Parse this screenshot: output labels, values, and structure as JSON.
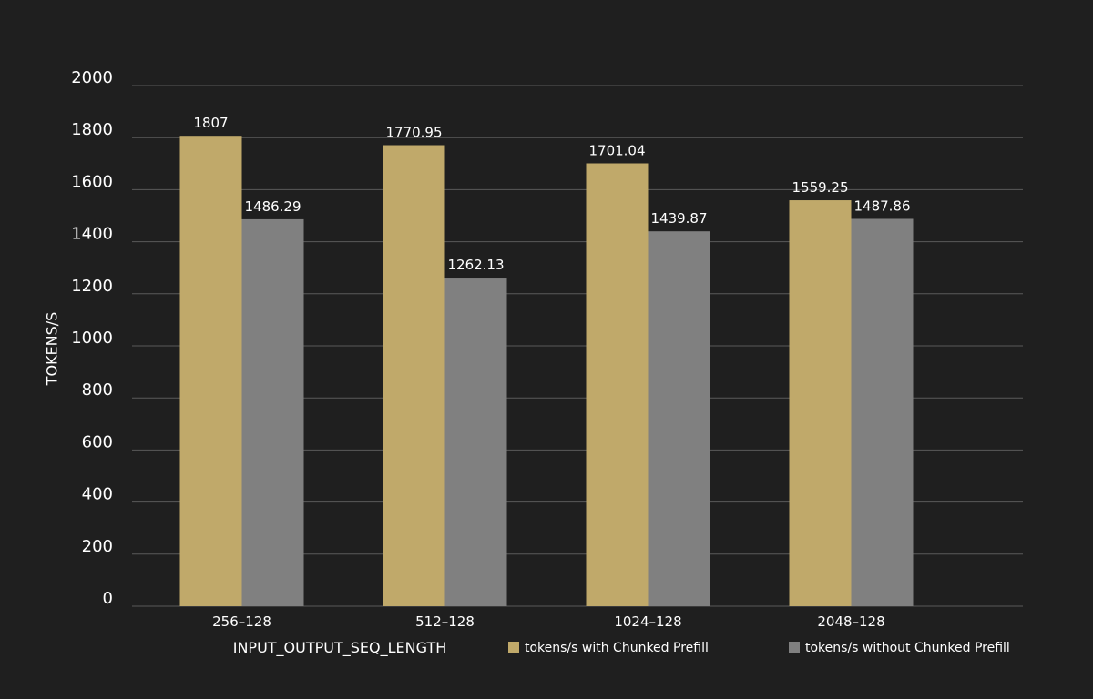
{
  "chart_data": {
    "type": "bar",
    "title": "",
    "xlabel": "INPUT_OUTPUT_SEQ_LENGTH",
    "ylabel": "TOKENS/S",
    "categories": [
      "256–128",
      "512–128",
      "1024–128",
      "2048–128"
    ],
    "series": [
      {
        "name": "tokens/s with Chunked Prefill",
        "color": "#c0a96a",
        "values": [
          1807,
          1770.95,
          1701.04,
          1559.25
        ],
        "labels": [
          "1807",
          "1770.95",
          "1701.04",
          "1559.25"
        ]
      },
      {
        "name": "tokens/s without Chunked Prefill",
        "color": "#808080",
        "values": [
          1486.29,
          1262.13,
          1439.87,
          1487.86
        ],
        "labels": [
          "1486.29",
          "1262.13",
          "1439.87",
          "1487.86"
        ]
      }
    ],
    "ylim": [
      0,
      2000
    ],
    "yticks": [
      0,
      200,
      400,
      600,
      800,
      1000,
      1200,
      1400,
      1600,
      1800,
      2000
    ],
    "grid": true,
    "legend_position": "bottom-right",
    "background": "#1f1f1f",
    "grid_color": "#5a5a5a"
  }
}
